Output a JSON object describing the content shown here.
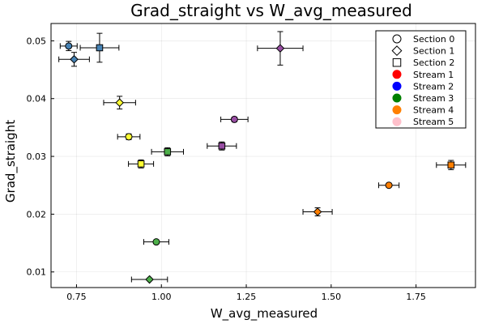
{
  "chart_data": {
    "type": "scatter",
    "title": "Grad_straight vs W_avg_measured",
    "xlabel": "W_avg_measured",
    "ylabel": "Grad_straight",
    "xlim": [
      0.675,
      1.925
    ],
    "ylim": [
      0.0073,
      0.053
    ],
    "xticks": [
      0.75,
      1.0,
      1.25,
      1.5,
      1.75
    ],
    "xtick_labels": [
      "0.75",
      "1.00",
      "1.25",
      "1.50",
      "1.75"
    ],
    "yticks": [
      0.01,
      0.02,
      0.03,
      0.04,
      0.05
    ],
    "ytick_labels": [
      "0.01",
      "0.02",
      "0.03",
      "0.04",
      "0.05"
    ],
    "grid": true,
    "legend_position": "top-right",
    "legend": [
      {
        "label": "Section 0",
        "kind": "marker",
        "shape": "circle"
      },
      {
        "label": "Section 1",
        "kind": "marker",
        "shape": "diamond"
      },
      {
        "label": "Section 2",
        "kind": "marker",
        "shape": "square"
      },
      {
        "label": "Stream 1",
        "kind": "color",
        "color": "#ff0000"
      },
      {
        "label": "Stream 2",
        "kind": "color",
        "color": "#0000ff"
      },
      {
        "label": "Stream 3",
        "kind": "color",
        "color": "#008000"
      },
      {
        "label": "Stream 4",
        "kind": "color",
        "color": "#ff8000"
      },
      {
        "label": "Stream 5",
        "kind": "color",
        "color": "#ffc0cb"
      }
    ],
    "points": [
      {
        "x": 0.727,
        "y": 0.0491,
        "xerr": 0.025,
        "yerr": 0.0008,
        "shape": "circle",
        "color": "#4682b4"
      },
      {
        "x": 0.743,
        "y": 0.0468,
        "xerr": 0.045,
        "yerr": 0.0012,
        "shape": "diamond",
        "color": "#4682b4"
      },
      {
        "x": 0.818,
        "y": 0.0488,
        "xerr": 0.057,
        "yerr": 0.0025,
        "shape": "square",
        "color": "#4682b4"
      },
      {
        "x": 0.877,
        "y": 0.0393,
        "xerr": 0.047,
        "yerr": 0.0011,
        "shape": "diamond",
        "color": "#ffff33"
      },
      {
        "x": 0.904,
        "y": 0.0334,
        "xerr": 0.033,
        "yerr": 0.0005,
        "shape": "circle",
        "color": "#ffff33"
      },
      {
        "x": 0.94,
        "y": 0.0287,
        "xerr": 0.037,
        "yerr": 0.0007,
        "shape": "square",
        "color": "#ffff33"
      },
      {
        "x": 1.018,
        "y": 0.0308,
        "xerr": 0.047,
        "yerr": 0.0007,
        "shape": "square",
        "color": "#4daf4a"
      },
      {
        "x": 0.985,
        "y": 0.0152,
        "xerr": 0.037,
        "yerr": 0.0003,
        "shape": "circle",
        "color": "#4daf4a"
      },
      {
        "x": 0.965,
        "y": 0.0087,
        "xerr": 0.053,
        "yerr": 0.0002,
        "shape": "diamond",
        "color": "#4daf4a"
      },
      {
        "x": 1.215,
        "y": 0.0364,
        "xerr": 0.04,
        "yerr": 0.0004,
        "shape": "circle",
        "color": "#984ea3"
      },
      {
        "x": 1.178,
        "y": 0.0318,
        "xerr": 0.043,
        "yerr": 0.0007,
        "shape": "square",
        "color": "#984ea3"
      },
      {
        "x": 1.35,
        "y": 0.0487,
        "xerr": 0.067,
        "yerr": 0.0029,
        "shape": "diamond",
        "color": "#984ea3"
      },
      {
        "x": 1.46,
        "y": 0.0204,
        "xerr": 0.043,
        "yerr": 0.0007,
        "shape": "diamond",
        "color": "#ff7f00"
      },
      {
        "x": 1.67,
        "y": 0.025,
        "xerr": 0.03,
        "yerr": 0.0002,
        "shape": "circle",
        "color": "#ff7f00"
      },
      {
        "x": 1.853,
        "y": 0.0285,
        "xerr": 0.043,
        "yerr": 0.0008,
        "shape": "square",
        "color": "#ff7f00"
      }
    ]
  }
}
